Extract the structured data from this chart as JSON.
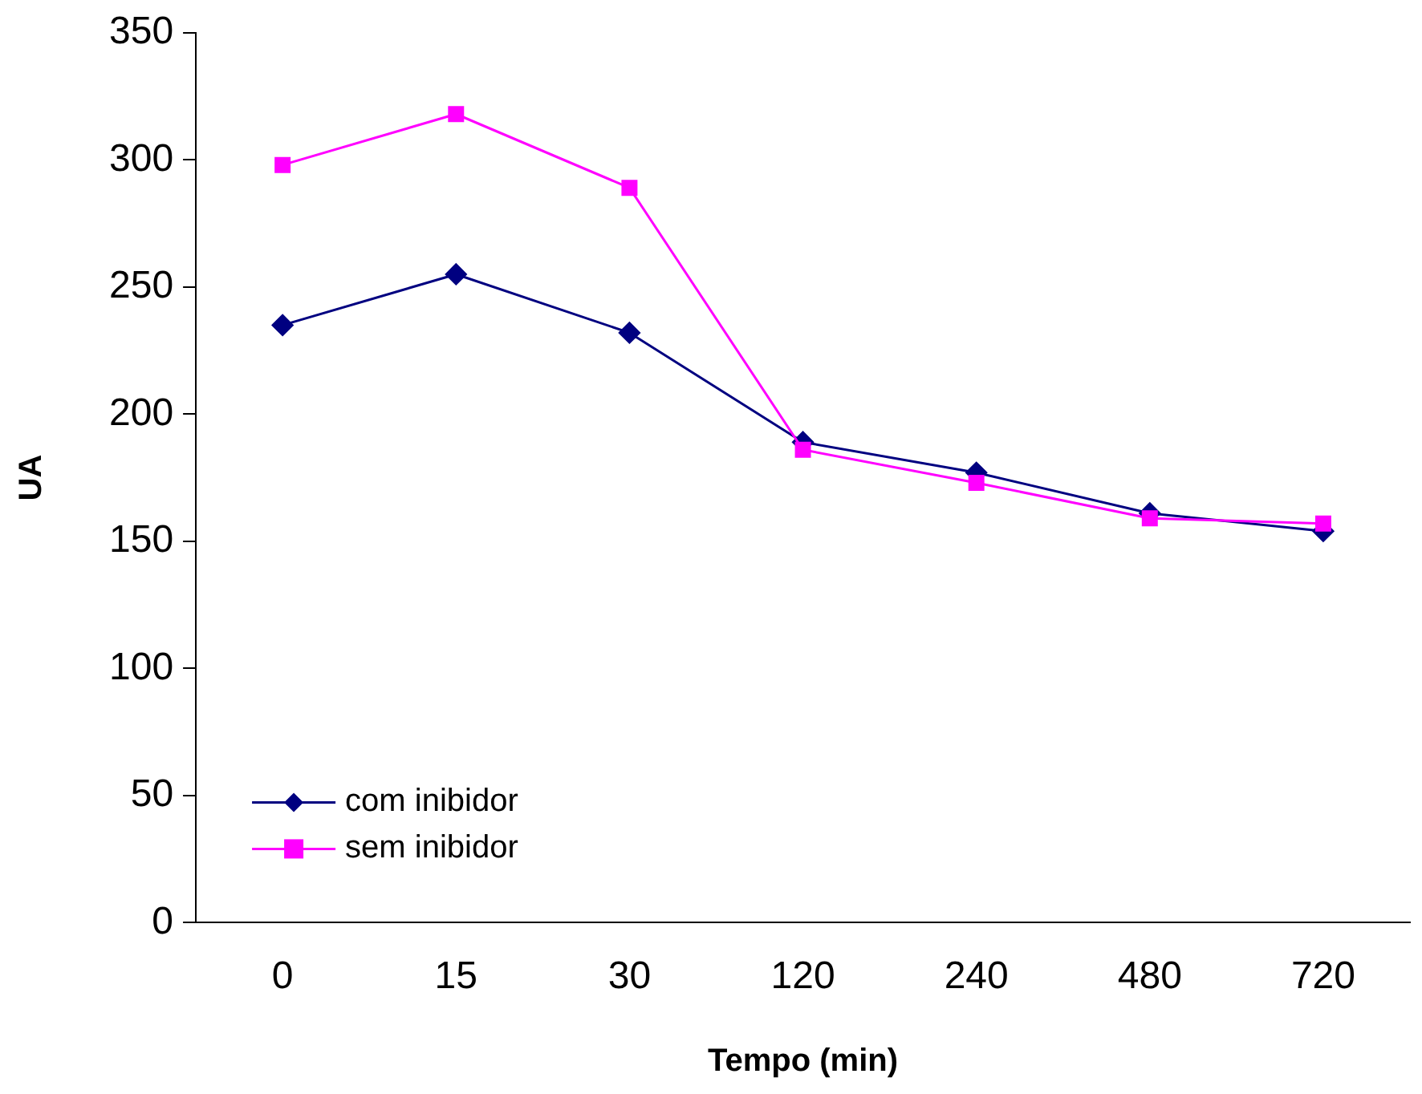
{
  "chart_data": {
    "type": "line",
    "xlabel": "Tempo (min)",
    "ylabel": "UA",
    "categories": [
      "0",
      "15",
      "30",
      "120",
      "240",
      "480",
      "720"
    ],
    "ylim": [
      0,
      350
    ],
    "yticks": [
      0,
      50,
      100,
      150,
      200,
      250,
      300,
      350
    ],
    "grid": false,
    "legend": "bottom left",
    "series": [
      {
        "name": "com inibidor",
        "color": "#000080",
        "marker": "diamond",
        "values": [
          235,
          255,
          232,
          189,
          177,
          161,
          154
        ]
      },
      {
        "name": "sem inibidor",
        "color": "#ff00ff",
        "marker": "square",
        "values": [
          298,
          318,
          289,
          186,
          173,
          159,
          157
        ]
      }
    ]
  }
}
